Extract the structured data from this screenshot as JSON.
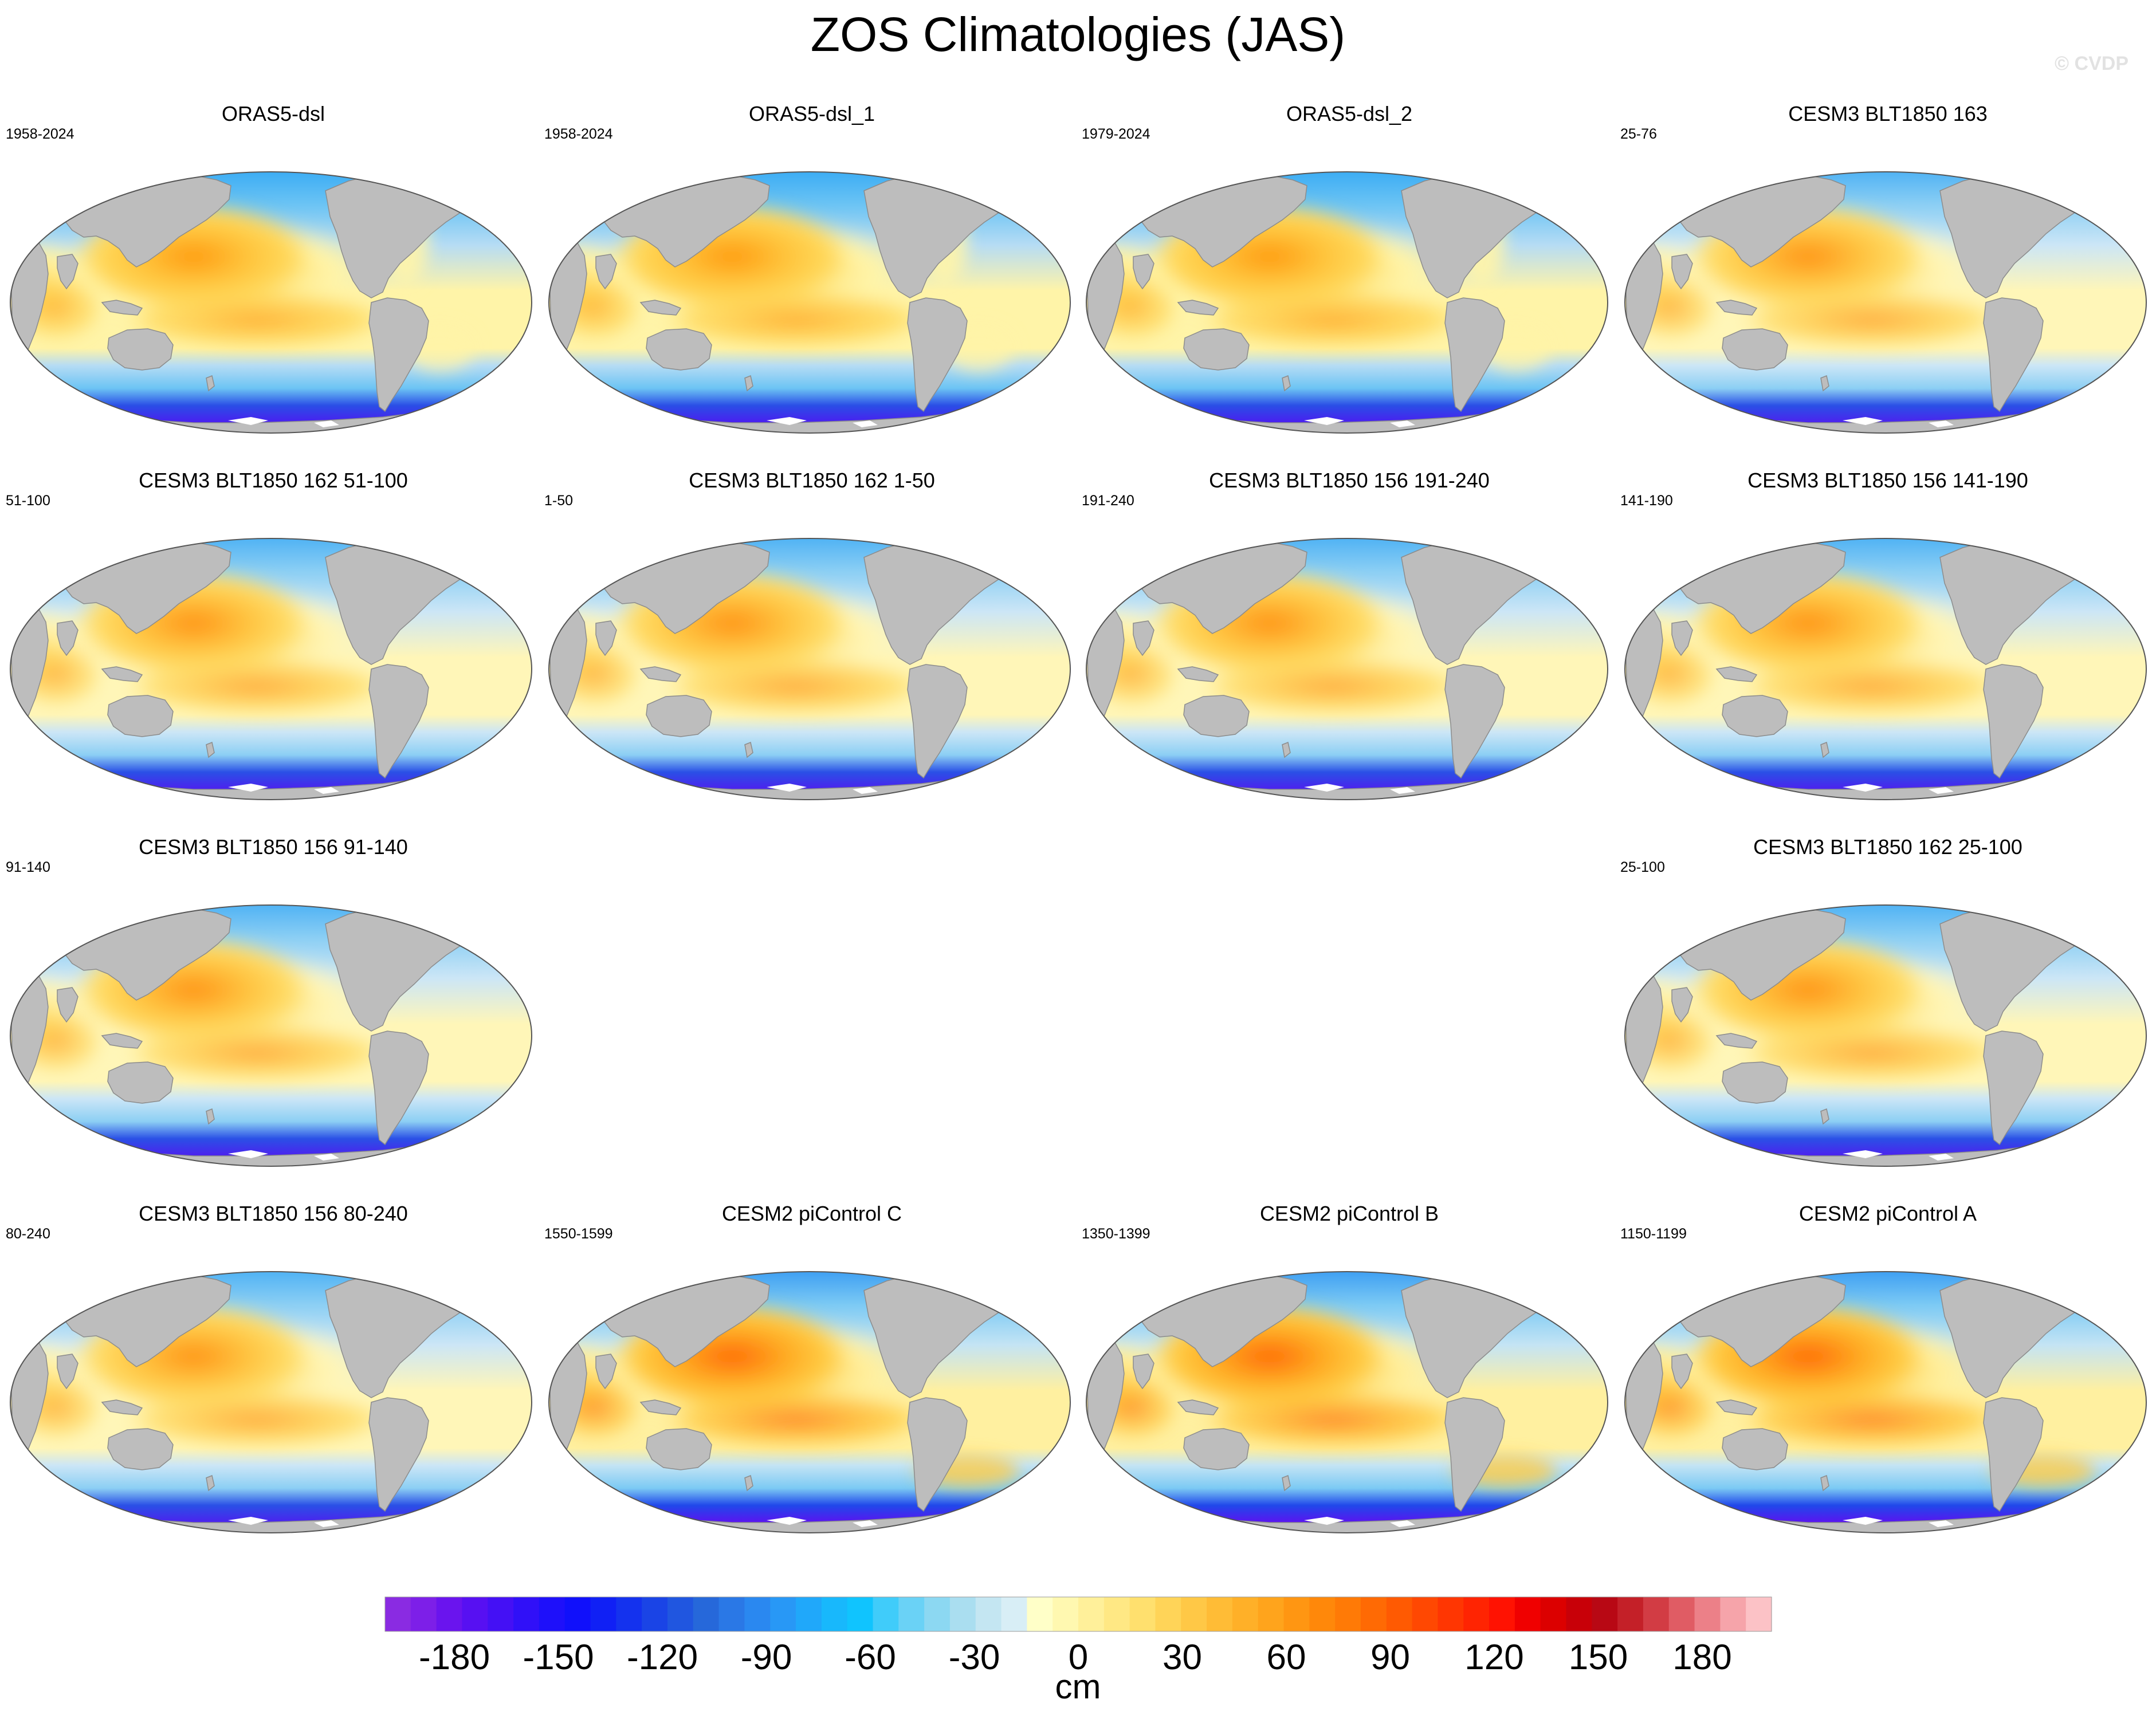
{
  "title": "ZOS Climatologies (JAS)",
  "watermark": "© CVDP",
  "colors": {
    "land": "#bdbdbd",
    "coast": "#8c8c8c",
    "sea_ice": "#ffffff"
  },
  "panels": [
    {
      "title": "ORAS5-dsl",
      "years": "1958-2024",
      "style": "obs"
    },
    {
      "title": "ORAS5-dsl_1",
      "years": "1958-2024",
      "style": "obs"
    },
    {
      "title": "ORAS5-dsl_2",
      "years": "1979-2024",
      "style": "obs"
    },
    {
      "title": "CESM3 BLT1850 163",
      "years": "25-76",
      "style": "cesm3"
    },
    {
      "title": "CESM3 BLT1850 162 51-100",
      "years": "51-100",
      "style": "cesm3"
    },
    {
      "title": "CESM3 BLT1850 162 1-50",
      "years": "1-50",
      "style": "cesm3"
    },
    {
      "title": "CESM3 BLT1850 156 191-240",
      "years": "191-240",
      "style": "cesm3"
    },
    {
      "title": "CESM3 BLT1850 156 141-190",
      "years": "141-190",
      "style": "cesm3"
    },
    {
      "title": "CESM3 BLT1850 156 91-140",
      "years": "91-140",
      "style": "cesm3"
    },
    {
      "title": "CESM3 BLT1850 162 25-100",
      "years": "25-100",
      "style": "cesm3"
    },
    {
      "title": "CESM3 BLT1850 156 80-240",
      "years": "80-240",
      "style": "cesm3"
    },
    {
      "title": "CESM2 piControl C",
      "years": "1550-1599",
      "style": "cesm2"
    },
    {
      "title": "CESM2 piControl B",
      "years": "1350-1399",
      "style": "cesm2"
    },
    {
      "title": "CESM2 piControl A",
      "years": "1150-1199",
      "style": "cesm2"
    }
  ],
  "colorbar": {
    "unit": "cm",
    "min": -200,
    "max": 200,
    "step": 10,
    "tick_labels": [
      "-180",
      "-150",
      "-120",
      "-90",
      "-60",
      "-30",
      "0",
      "30",
      "60",
      "90",
      "120",
      "150",
      "180"
    ],
    "colors": [
      "#8a2be2",
      "#7d1fe8",
      "#6a14ee",
      "#5710f2",
      "#4410f5",
      "#3010f8",
      "#1e10fa",
      "#1010fb",
      "#1020f5",
      "#1432ee",
      "#1a44e6",
      "#2056e0",
      "#2668da",
      "#2a78e6",
      "#2a88f0",
      "#2898f6",
      "#20a8fa",
      "#18b8fc",
      "#10c4fe",
      "#40ccfa",
      "#6ad2f6",
      "#8cd8f2",
      "#aadef0",
      "#c4e6f2",
      "#d8eef6",
      "#ffffc8",
      "#fff8b0",
      "#fff09a",
      "#ffe884",
      "#ffe06e",
      "#ffd458",
      "#ffc846",
      "#ffbc36",
      "#ffb028",
      "#ffa41c",
      "#ff9612",
      "#ff880a",
      "#ff7a06",
      "#ff6a04",
      "#ff5a02",
      "#ff4802",
      "#ff3602",
      "#ff2402",
      "#ff1202",
      "#f00000",
      "#dc0000",
      "#c80008",
      "#b80814",
      "#c42028",
      "#d23c44",
      "#e05c64",
      "#ec8088",
      "#f6a4aa",
      "#fcc2c6"
    ]
  }
}
